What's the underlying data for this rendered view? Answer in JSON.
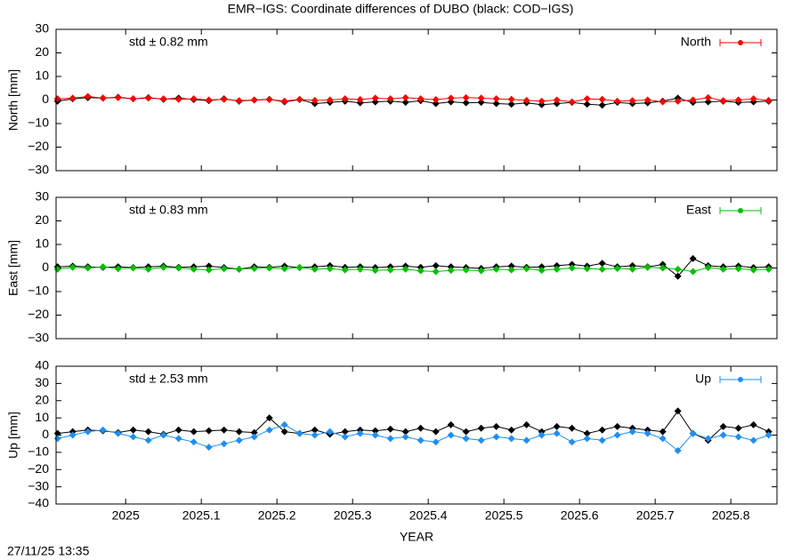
{
  "title": "EMR−IGS: Coordinate differences of DUBO (black: COD−IGS)",
  "timestamp": "27/11/25 13:35",
  "chart_data": [
    {
      "type": "line",
      "ylabel": "North [mm]",
      "annotation": "std ± 0.82 mm",
      "legend": "top-right",
      "x_tick_labels": false,
      "xlim": [
        2024.908,
        2025.861
      ],
      "xticks": [
        2025,
        2025.1,
        2025.2,
        2025.3,
        2025.4,
        2025.5,
        2025.6,
        2025.7,
        2025.8
      ],
      "ylim": [
        -30,
        30
      ],
      "yticks": [
        {
          "value": -30,
          "label": "−30"
        },
        {
          "value": -20,
          "label": "−20"
        },
        {
          "value": -10,
          "label": "−10"
        },
        0,
        10,
        20,
        30
      ],
      "x": [
        2024.91,
        2024.93,
        2024.95,
        2024.97,
        2024.99,
        2025.01,
        2025.03,
        2025.05,
        2025.07,
        2025.09,
        2025.11,
        2025.13,
        2025.15,
        2025.17,
        2025.19,
        2025.21,
        2025.23,
        2025.25,
        2025.27,
        2025.29,
        2025.31,
        2025.33,
        2025.35,
        2025.37,
        2025.39,
        2025.41,
        2025.43,
        2025.45,
        2025.47,
        2025.49,
        2025.51,
        2025.53,
        2025.55,
        2025.57,
        2025.59,
        2025.61,
        2025.63,
        2025.65,
        2025.67,
        2025.69,
        2025.71,
        2025.73,
        2025.75,
        2025.77,
        2025.79,
        2025.81,
        2025.83,
        2025.85
      ],
      "series": [
        {
          "color": "#000000",
          "values": [
            -0.5,
            0.5,
            1,
            0.8,
            1.2,
            0.5,
            1,
            0.3,
            0.8,
            0.2,
            -0.3,
            0.5,
            -0.5,
            0,
            0.3,
            -0.8,
            0.2,
            -1.5,
            -1,
            -0.5,
            -1.2,
            -0.8,
            -0.5,
            -1,
            -0.3,
            -1.5,
            -0.8,
            -1.2,
            -1,
            -1.5,
            -1.8,
            -1.2,
            -2,
            -1.5,
            -1,
            -1.8,
            -2.2,
            -1,
            -1.5,
            -1.2,
            -0.5,
            0.8,
            -1,
            -0.8,
            -0.5,
            -1,
            -0.8,
            -0.5
          ]
        },
        {
          "name": "North",
          "color": "#ff0000",
          "values": [
            0.5,
            0.8,
            1.5,
            0.8,
            1,
            0.5,
            0.8,
            0.5,
            0.3,
            0.5,
            0,
            0.3,
            -0.3,
            0,
            0.2,
            -0.5,
            0.3,
            -0.2,
            0,
            0.5,
            0.2,
            0.8,
            0.5,
            1,
            0.5,
            0.2,
            0.8,
            1,
            0.8,
            0.5,
            0.3,
            -0.2,
            -0.5,
            0,
            -0.8,
            0.5,
            0.3,
            -0.5,
            -0.3,
            0,
            -0.8,
            -0.5,
            0,
            1,
            -0.3,
            0,
            0.5,
            -0.2
          ]
        }
      ]
    },
    {
      "type": "line",
      "ylabel": "East [mm]",
      "annotation": "std ± 0.83 mm",
      "legend": "top-right",
      "x_tick_labels": false,
      "xlim": [
        2024.908,
        2025.861
      ],
      "xticks": [
        2025,
        2025.1,
        2025.2,
        2025.3,
        2025.4,
        2025.5,
        2025.6,
        2025.7,
        2025.8
      ],
      "ylim": [
        -30,
        30
      ],
      "yticks": [
        {
          "value": -30,
          "label": "−30"
        },
        {
          "value": -20,
          "label": "−20"
        },
        {
          "value": -10,
          "label": "−10"
        },
        0,
        10,
        20,
        30
      ],
      "x": [
        2024.91,
        2024.93,
        2024.95,
        2024.97,
        2024.99,
        2025.01,
        2025.03,
        2025.05,
        2025.07,
        2025.09,
        2025.11,
        2025.13,
        2025.15,
        2025.17,
        2025.19,
        2025.21,
        2025.23,
        2025.25,
        2025.27,
        2025.29,
        2025.31,
        2025.33,
        2025.35,
        2025.37,
        2025.39,
        2025.41,
        2025.43,
        2025.45,
        2025.47,
        2025.49,
        2025.51,
        2025.53,
        2025.55,
        2025.57,
        2025.59,
        2025.61,
        2025.63,
        2025.65,
        2025.67,
        2025.69,
        2025.71,
        2025.73,
        2025.75,
        2025.77,
        2025.79,
        2025.81,
        2025.83,
        2025.85
      ],
      "series": [
        {
          "color": "#000000",
          "values": [
            0.5,
            0.8,
            0.5,
            0.3,
            0.5,
            0.2,
            0.5,
            0.8,
            0.3,
            0.5,
            0.8,
            0.2,
            -0.5,
            0.5,
            0.3,
            0.8,
            0.2,
            0.5,
            1,
            0.3,
            0.5,
            0.2,
            0.5,
            0.8,
            0.3,
            1,
            0.5,
            0.2,
            -0.2,
            0.5,
            0.8,
            0.3,
            0.5,
            1,
            1.5,
            0.8,
            2,
            0.5,
            1,
            0.5,
            1.5,
            -3.5,
            4,
            1,
            0.5,
            0.8,
            0.2,
            0.5
          ]
        },
        {
          "name": "East",
          "color": "#00c000",
          "values": [
            -0.5,
            0.3,
            0,
            0.5,
            -0.3,
            0,
            -0.5,
            0.3,
            0,
            -0.5,
            -0.8,
            -0.3,
            -0.5,
            -0.2,
            0,
            -0.3,
            0.2,
            -0.5,
            -0.3,
            -0.8,
            -0.5,
            -1,
            -0.8,
            -0.5,
            -1.2,
            -1.5,
            -1,
            -0.8,
            -1.2,
            -0.5,
            -0.8,
            -0.3,
            -1,
            -0.5,
            0,
            -0.3,
            -0.5,
            -0.2,
            -0.5,
            0.3,
            0,
            -0.5,
            -1.5,
            0.2,
            -0.5,
            -0.3,
            -0.8,
            -0.5
          ]
        }
      ]
    },
    {
      "type": "line",
      "ylabel": "Up [mm]",
      "xlabel": "YEAR",
      "annotation": "std ± 2.53 mm",
      "legend": "top-right",
      "x_tick_labels": true,
      "xlim": [
        2024.908,
        2025.861
      ],
      "xticks": [
        2025,
        2025.1,
        2025.2,
        2025.3,
        2025.4,
        2025.5,
        2025.6,
        2025.7,
        2025.8
      ],
      "ylim": [
        -40,
        40
      ],
      "yticks": [
        {
          "value": -40,
          "label": "−40"
        },
        {
          "value": -30,
          "label": "−30"
        },
        {
          "value": -20,
          "label": "−20"
        },
        {
          "value": -10,
          "label": "−10"
        },
        0,
        10,
        20,
        30,
        40
      ],
      "x": [
        2024.91,
        2024.93,
        2024.95,
        2024.97,
        2024.99,
        2025.01,
        2025.03,
        2025.05,
        2025.07,
        2025.09,
        2025.11,
        2025.13,
        2025.15,
        2025.17,
        2025.19,
        2025.21,
        2025.23,
        2025.25,
        2025.27,
        2025.29,
        2025.31,
        2025.33,
        2025.35,
        2025.37,
        2025.39,
        2025.41,
        2025.43,
        2025.45,
        2025.47,
        2025.49,
        2025.51,
        2025.53,
        2025.55,
        2025.57,
        2025.59,
        2025.61,
        2025.63,
        2025.65,
        2025.67,
        2025.69,
        2025.71,
        2025.73,
        2025.75,
        2025.77,
        2025.79,
        2025.81,
        2025.83,
        2025.85
      ],
      "series": [
        {
          "color": "#000000",
          "values": [
            1,
            2,
            3,
            2.5,
            1.5,
            3,
            2,
            0.5,
            3,
            2,
            2.5,
            3,
            2,
            1.5,
            10,
            2,
            1,
            3,
            0.5,
            2,
            3,
            2.5,
            3.5,
            2,
            4,
            2,
            6,
            2,
            4,
            5,
            3,
            6,
            2,
            5,
            4,
            1,
            3,
            5,
            4,
            3,
            2,
            14,
            1,
            -3,
            5,
            4,
            6,
            2
          ]
        },
        {
          "name": "Up",
          "color": "#1e8ff0",
          "values": [
            -2,
            0,
            2,
            3,
            1,
            -1,
            -3,
            0,
            -2,
            -4,
            -7,
            -5,
            -3,
            -1,
            3,
            6,
            1,
            0,
            2,
            -1,
            1,
            0,
            -2,
            -1,
            -3,
            -4,
            0,
            -2,
            -3,
            -1,
            -2,
            -3,
            0,
            1,
            -4,
            -2,
            -3,
            0,
            2,
            1,
            -2,
            -9,
            1,
            -2,
            0,
            -1,
            -3,
            0
          ]
        }
      ]
    }
  ]
}
